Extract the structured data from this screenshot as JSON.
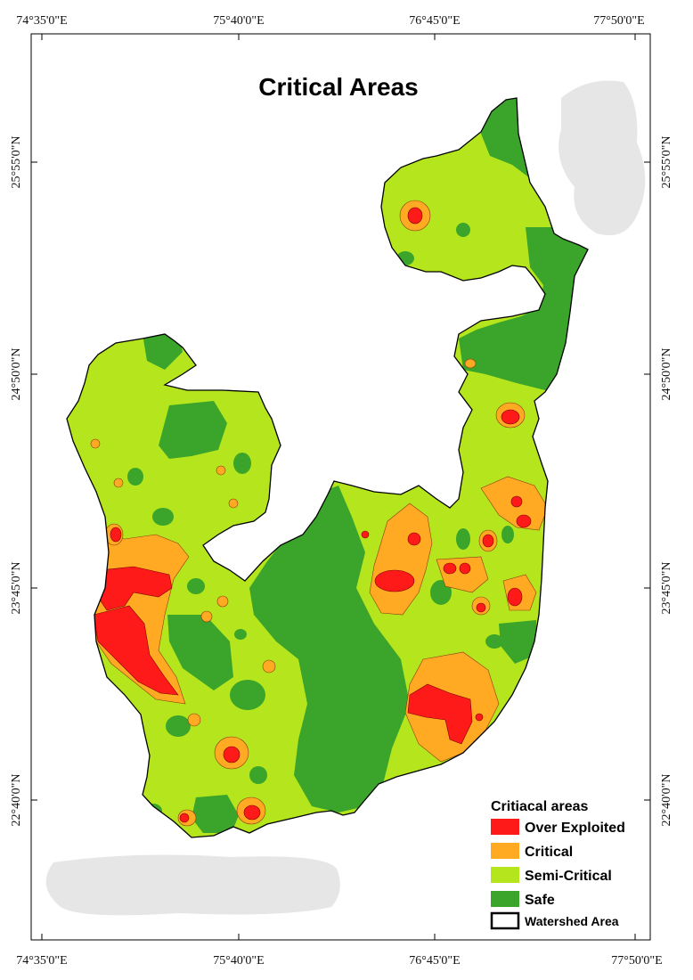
{
  "map": {
    "title": "Critical Areas",
    "top_ticks": [
      "74°35'0\"E",
      "75°40'0\"E",
      "76°45'0\"E",
      "77°50'0\"E"
    ],
    "bottom_ticks": [
      "74°35'0\"E",
      "75°40'0\"E",
      "76°45'0\"E",
      "77°50'0\"E"
    ],
    "left_ticks": [
      "25°55'0\"N",
      "24°50'0\"N",
      "23°45'0\"N",
      "22°40'0\"N"
    ],
    "right_ticks": [
      "25°55'0\"N",
      "24°50'0\"N",
      "23°45'0\"N",
      "22°40'0\"N"
    ]
  },
  "legend": {
    "title": "Critiacal areas",
    "items": [
      {
        "label": "Over Exploited",
        "color": "#ff1a1a"
      },
      {
        "label": "Critical",
        "color": "#ffaa22"
      },
      {
        "label": "Semi-Critical",
        "color": "#b5e61d"
      },
      {
        "label": "Safe",
        "color": "#3aa52a"
      }
    ],
    "boundary_label": "Watershed Area"
  },
  "colors": {
    "over_exploited": "#ff1a1a",
    "critical": "#ffaa22",
    "semi_critical": "#b5e61d",
    "safe": "#3aa52a",
    "boundary": "#000000",
    "redaction": "#e6e6e6"
  }
}
